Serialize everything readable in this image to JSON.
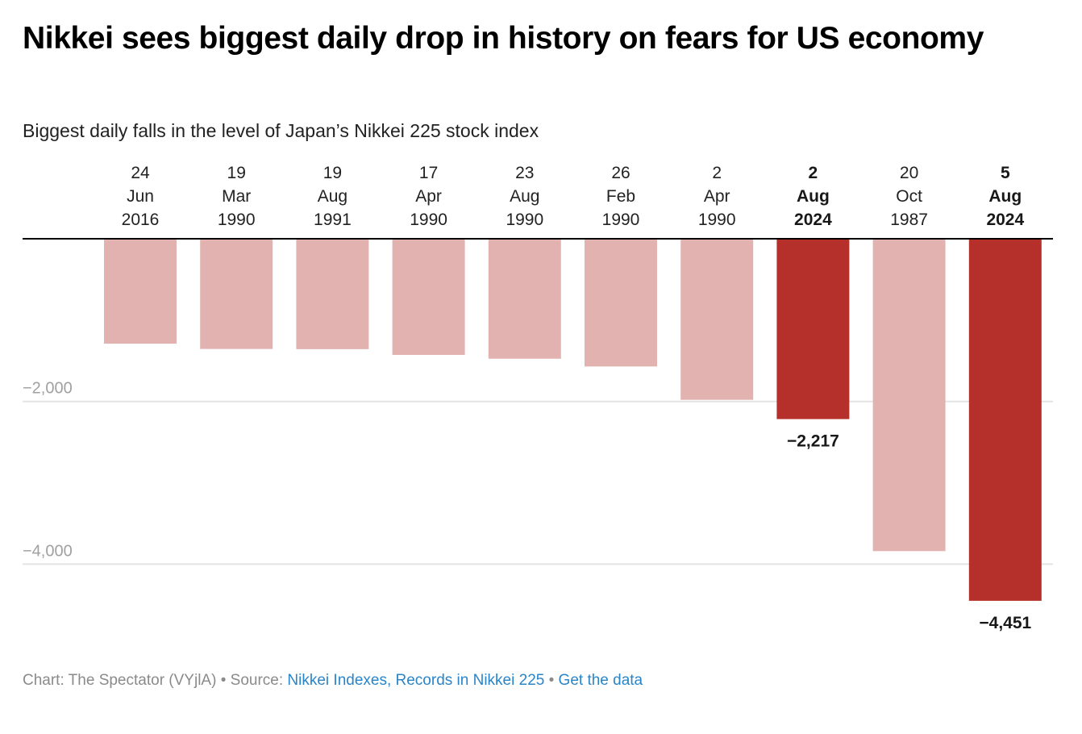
{
  "header": {
    "title": "Nikkei sees biggest daily drop in history on fears for US economy",
    "subtitle": "Biggest daily falls in the level of Japan’s Nikkei 225 stock index"
  },
  "footer": {
    "credit": "Chart: The Spectator (VYjlA)",
    "separator": " • ",
    "source_prefix": "Source: ",
    "source_link": "Nikkei Indexes, Records in Nikkei 225",
    "get_data_link": "Get the data"
  },
  "colors": {
    "base_bar": "#e2b2b1",
    "highlight_bar": "#b5302a",
    "gridline": "#e4e4e4",
    "zero_line": "#000000",
    "link": "#2a85c8"
  },
  "chart_data": {
    "type": "bar",
    "orientation": "vertical",
    "title": "Nikkei sees biggest daily drop in history on fears for US economy",
    "subtitle": "Biggest daily falls in the level of Japan’s Nikkei 225 stock index",
    "xlabel": "",
    "ylabel": "",
    "categories": [
      [
        "24",
        "Jun",
        "2016"
      ],
      [
        "19",
        "Mar",
        "1990"
      ],
      [
        "19",
        "Aug",
        "1991"
      ],
      [
        "17",
        "Apr",
        "1990"
      ],
      [
        "23",
        "Aug",
        "1990"
      ],
      [
        "26",
        "Feb",
        "1990"
      ],
      [
        "2",
        "Apr",
        "1990"
      ],
      [
        "2",
        "Aug",
        "2024"
      ],
      [
        "20",
        "Oct",
        "1987"
      ],
      [
        "5",
        "Aug",
        "2024"
      ]
    ],
    "values": [
      -1290,
      -1355,
      -1357,
      -1428,
      -1475,
      -1570,
      -1980,
      -2217,
      -3840,
      -4451
    ],
    "highlighted": [
      false,
      false,
      false,
      false,
      false,
      false,
      false,
      true,
      false,
      true
    ],
    "data_labels": [
      "",
      "",
      "",
      "",
      "",
      "",
      "",
      "−2,217",
      "",
      "−4,451"
    ],
    "ylim": [
      -4700,
      0
    ],
    "yticks": [
      -2000,
      -4000
    ],
    "ytick_labels": [
      "−2,000",
      "−4,000"
    ],
    "x_axis_position": "top",
    "grid": true,
    "legend": "none"
  }
}
